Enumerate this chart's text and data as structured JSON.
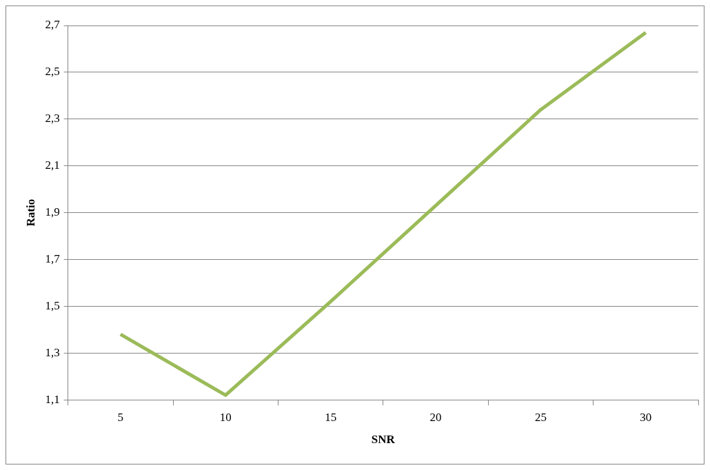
{
  "chart_data": {
    "type": "line",
    "xlabel": "SNR",
    "ylabel": "Ratio",
    "categories": [
      "5",
      "10",
      "15",
      "20",
      "25",
      "30"
    ],
    "series": [
      {
        "color": "#9bbb59",
        "values": [
          1.38,
          1.12,
          1.52,
          1.93,
          2.34,
          2.67
        ]
      }
    ],
    "ylim": [
      1.1,
      2.7
    ],
    "yticks": [
      {
        "value": 1.1,
        "label": "1,1"
      },
      {
        "value": 1.3,
        "label": "1,3"
      },
      {
        "value": 1.5,
        "label": "1,5"
      },
      {
        "value": 1.7,
        "label": "1,7"
      },
      {
        "value": 1.9,
        "label": "1,9"
      },
      {
        "value": 2.1,
        "label": "2,1"
      },
      {
        "value": 2.3,
        "label": "2,3"
      },
      {
        "value": 2.5,
        "label": "2,5"
      },
      {
        "value": 2.7,
        "label": "2,7"
      }
    ],
    "grid": "y",
    "legend": false,
    "marker": "none",
    "line_style": "solid"
  }
}
